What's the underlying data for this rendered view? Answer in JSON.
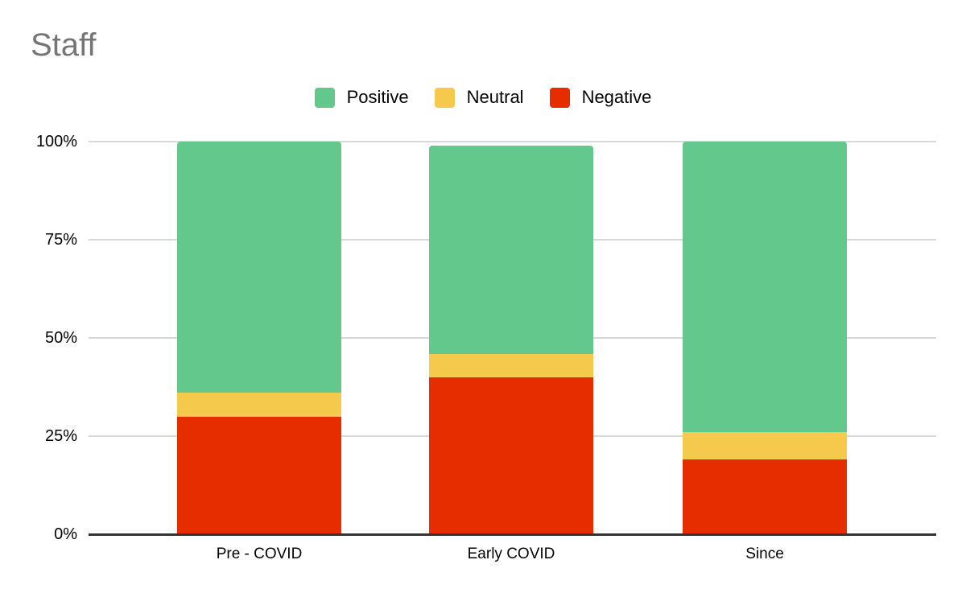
{
  "title": "Staff",
  "chart_data": {
    "type": "bar",
    "stacked": true,
    "title": "Staff",
    "categories": [
      "Pre - COVID",
      "Early COVID",
      "Since"
    ],
    "series": [
      {
        "name": "Positive",
        "color": "#63C88C",
        "values": [
          64,
          53,
          74
        ]
      },
      {
        "name": "Neutral",
        "color": "#F5C94C",
        "values": [
          6,
          6,
          7
        ]
      },
      {
        "name": "Negative",
        "color": "#E52D00",
        "values": [
          30,
          40,
          19
        ]
      }
    ],
    "stack_order_bottom_to_top": [
      "Negative",
      "Neutral",
      "Positive"
    ],
    "stack_totals": [
      100,
      99,
      100
    ],
    "xlabel": "",
    "ylabel": "",
    "y_ticks": [
      "0%",
      "25%",
      "50%",
      "75%",
      "100%"
    ],
    "ylim": [
      0,
      100
    ],
    "grid": true,
    "legend_position": "top",
    "colors": {
      "title_text": "#757575",
      "axis_text": "#000000",
      "gridline": "#D8D8D8",
      "axis_line": "#333333",
      "background": "#FFFFFF"
    }
  }
}
